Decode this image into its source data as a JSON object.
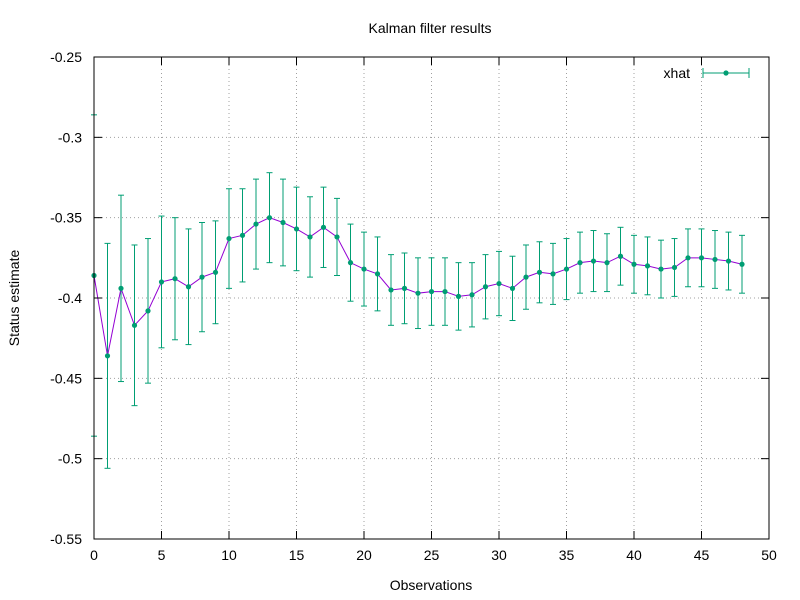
{
  "chart_data": {
    "type": "line",
    "title": "Kalman filter results",
    "xlabel": "Observations",
    "ylabel": "Status estimate",
    "xlim": [
      0,
      50
    ],
    "ylim": [
      -0.55,
      -0.25
    ],
    "xticks": [
      "0",
      "5",
      "10",
      "15",
      "20",
      "25",
      "30",
      "35",
      "40",
      "45",
      "50"
    ],
    "yticks": [
      "-0.25",
      "-0.3",
      "-0.35",
      "-0.4",
      "-0.45",
      "-0.5",
      "-0.55"
    ],
    "grid": true,
    "legend_position": "top-right",
    "series": [
      {
        "name": "xhat",
        "color": "#009e73",
        "line_color": "#9400d3",
        "error_bars": true,
        "x": [
          0,
          1,
          2,
          3,
          4,
          5,
          6,
          7,
          8,
          9,
          10,
          11,
          12,
          13,
          14,
          15,
          16,
          17,
          18,
          19,
          20,
          21,
          22,
          23,
          24,
          25,
          26,
          27,
          28,
          29,
          30,
          31,
          32,
          33,
          34,
          35,
          36,
          37,
          38,
          39,
          40,
          41,
          42,
          43,
          44,
          45,
          46,
          47,
          48
        ],
        "y": [
          -0.386,
          -0.436,
          -0.394,
          -0.417,
          -0.408,
          -0.39,
          -0.388,
          -0.393,
          -0.387,
          -0.384,
          -0.363,
          -0.361,
          -0.354,
          -0.35,
          -0.353,
          -0.357,
          -0.362,
          -0.356,
          -0.362,
          -0.378,
          -0.382,
          -0.385,
          -0.395,
          -0.394,
          -0.397,
          -0.396,
          -0.396,
          -0.399,
          -0.398,
          -0.393,
          -0.391,
          -0.394,
          -0.387,
          -0.384,
          -0.385,
          -0.382,
          -0.378,
          -0.377,
          -0.378,
          -0.374,
          -0.379,
          -0.38,
          -0.382,
          -0.381,
          -0.375,
          -0.375,
          -0.376,
          -0.377,
          -0.379
        ],
        "err": [
          0.1,
          0.07,
          0.058,
          0.05,
          0.045,
          0.041,
          0.038,
          0.036,
          0.034,
          0.032,
          0.031,
          0.029,
          0.028,
          0.028,
          0.027,
          0.026,
          0.025,
          0.025,
          0.024,
          0.024,
          0.023,
          0.023,
          0.022,
          0.022,
          0.022,
          0.021,
          0.021,
          0.021,
          0.02,
          0.02,
          0.02,
          0.02,
          0.02,
          0.019,
          0.019,
          0.019,
          0.019,
          0.019,
          0.018,
          0.018,
          0.018,
          0.018,
          0.018,
          0.018,
          0.018,
          0.018,
          0.018,
          0.018,
          0.018
        ]
      }
    ]
  }
}
